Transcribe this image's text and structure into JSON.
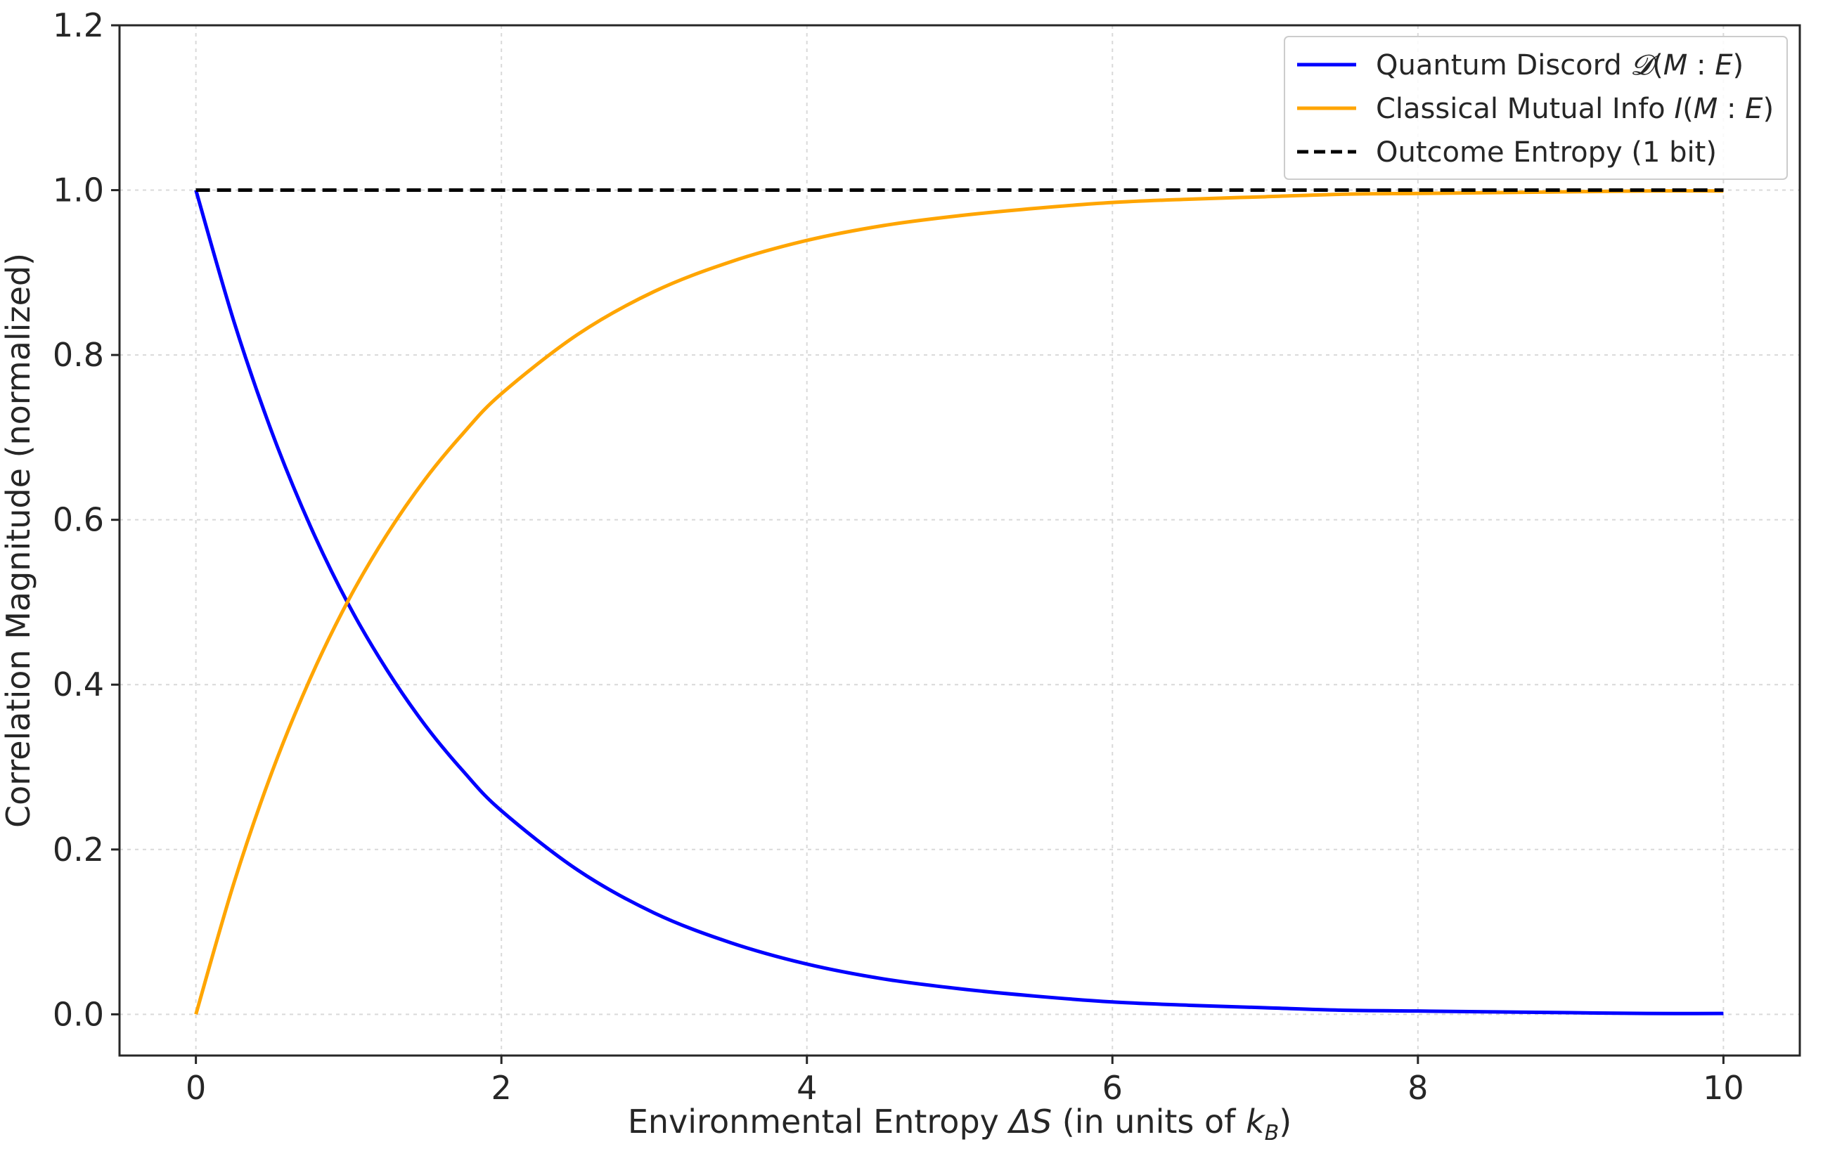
{
  "chart_data": {
    "type": "line",
    "title": "",
    "xlabel_parts": [
      "Environmental Entropy ",
      "ΔS",
      " (in units of ",
      "k",
      "B",
      ")"
    ],
    "ylabel": "Correlation Magnitude (normalized)",
    "xlim": [
      -0.5,
      10.5
    ],
    "ylim": [
      -0.05,
      1.2
    ],
    "xticks": [
      0,
      2,
      4,
      6,
      8,
      10
    ],
    "yticks": [
      0.0,
      0.2,
      0.4,
      0.6,
      0.8,
      1.0,
      1.2
    ],
    "xtick_labels": [
      "0",
      "2",
      "4",
      "6",
      "8",
      "10"
    ],
    "ytick_labels": [
      "0.0",
      "0.2",
      "0.4",
      "0.6",
      "0.8",
      "1.0",
      "1.2"
    ],
    "grid": true,
    "legend_position": "top-right",
    "x": [
      0,
      0.25,
      0.5,
      0.75,
      1,
      1.25,
      1.5,
      1.75,
      2,
      2.5,
      3,
      3.5,
      4,
      4.5,
      5,
      5.5,
      6,
      6.5,
      7,
      7.5,
      8,
      8.5,
      9,
      9.5,
      10
    ],
    "series": [
      {
        "legend_parts": [
          "Quantum Discord ",
          "𝓓",
          "(",
          "M",
          " : ",
          "E",
          ")"
        ],
        "color": "#0000ff",
        "style": "solid",
        "values": [
          1.0,
          0.84,
          0.705,
          0.592,
          0.497,
          0.418,
          0.351,
          0.295,
          0.247,
          0.175,
          0.123,
          0.087,
          0.061,
          0.043,
          0.031,
          0.022,
          0.015,
          0.011,
          0.008,
          0.005,
          0.004,
          0.003,
          0.002,
          0.001,
          0.001
        ]
      },
      {
        "legend_parts": [
          "Classical Mutual Info ",
          "I",
          "(",
          "M",
          " : ",
          "E",
          ")"
        ],
        "color": "#ffa500",
        "style": "solid",
        "values": [
          0.0,
          0.16,
          0.295,
          0.408,
          0.503,
          0.582,
          0.649,
          0.705,
          0.753,
          0.825,
          0.877,
          0.913,
          0.939,
          0.957,
          0.969,
          0.978,
          0.985,
          0.989,
          0.992,
          0.995,
          0.996,
          0.997,
          0.998,
          0.999,
          0.999
        ]
      },
      {
        "legend_parts": [
          "Outcome Entropy (1 bit)"
        ],
        "color": "#000000",
        "style": "dashed",
        "values": [
          1.0,
          1.0,
          1.0,
          1.0,
          1.0,
          1.0,
          1.0,
          1.0,
          1.0,
          1.0,
          1.0,
          1.0,
          1.0,
          1.0,
          1.0,
          1.0,
          1.0,
          1.0,
          1.0,
          1.0,
          1.0,
          1.0,
          1.0,
          1.0,
          1.0
        ]
      }
    ]
  }
}
